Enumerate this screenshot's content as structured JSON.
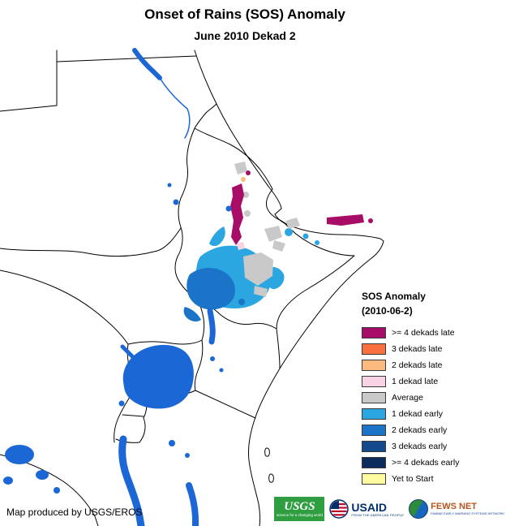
{
  "title": "Onset of Rains (SOS) Anomaly",
  "subtitle": "June 2010 Dekad 2",
  "legend": {
    "title": "SOS Anomaly",
    "subtitle": "(2010-06-2)",
    "items": [
      {
        "label": ">= 4 dekads late",
        "palette_key": "late4"
      },
      {
        "label": "3 dekads late",
        "palette_key": "late3"
      },
      {
        "label": "2 dekads late",
        "palette_key": "late2"
      },
      {
        "label": "1 dekad late",
        "palette_key": "late1"
      },
      {
        "label": "Average",
        "palette_key": "average"
      },
      {
        "label": "1 dekad early",
        "palette_key": "early1"
      },
      {
        "label": "2 dekads early",
        "palette_key": "early2"
      },
      {
        "label": "3 dekads early",
        "palette_key": "early3"
      },
      {
        "label": ">= 4 dekads early",
        "palette_key": "early4"
      },
      {
        "label": "Yet to Start",
        "palette_key": "yet_to_start"
      }
    ]
  },
  "palette": {
    "late4": "#A70D66",
    "late3": "#F8703E",
    "late2": "#FBBB80",
    "late1": "#FAD2E6",
    "average": "#C9C9C9",
    "early1": "#2CA6E0",
    "early2": "#1B74C8",
    "early3": "#15498E",
    "early4": "#0D2C5E",
    "yet_to_start": "#FFFB9E",
    "water": "#1C67D6",
    "border": "#000000"
  },
  "footer": {
    "credit": "Map produced by USGS/EROS"
  },
  "logos": {
    "usgs": {
      "name": "USGS",
      "tagline": "science for a changing world",
      "color": "#2F9E41"
    },
    "usaid": {
      "name": "USAID",
      "tagline": "FROM THE AMERICAN PEOPLE",
      "color": "#002F6C"
    },
    "fewsnet": {
      "name": "FEWS NET",
      "tagline": "FAMINE EARLY WARNING SYSTEMS NETWORK",
      "color": "#B5551D"
    }
  }
}
